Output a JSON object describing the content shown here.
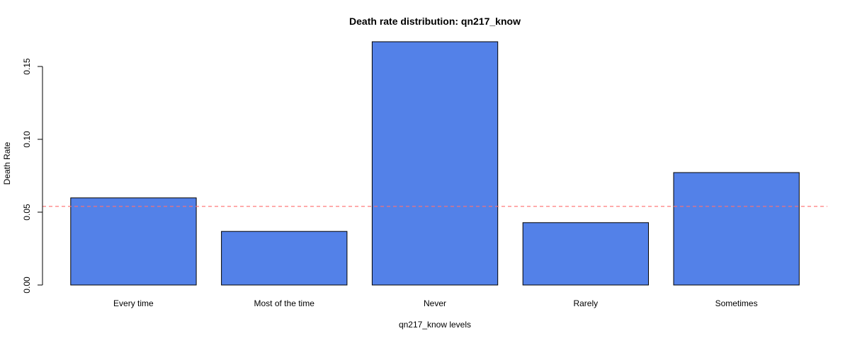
{
  "chart_data": {
    "type": "bar",
    "title": "Death rate distribution: qn217_know",
    "xlabel": "qn217_know levels",
    "ylabel": "Death Rate",
    "categories": [
      "Every time",
      "Most of the time",
      "Never",
      "Rarely",
      "Sometimes"
    ],
    "values": [
      0.0598,
      0.0368,
      0.167,
      0.0428,
      0.0772
    ],
    "ylim": [
      0,
      0.15
    ],
    "yticks": [
      0.0,
      0.05,
      0.1,
      0.15
    ],
    "ytick_labels": [
      "0.00",
      "0.05",
      "0.10",
      "0.15"
    ],
    "reference_line": 0.054,
    "grid": false,
    "legend": "none",
    "bar_color": "#5381E8",
    "bar_border_color": "#000000",
    "reference_line_color": "#FF6F6F"
  }
}
